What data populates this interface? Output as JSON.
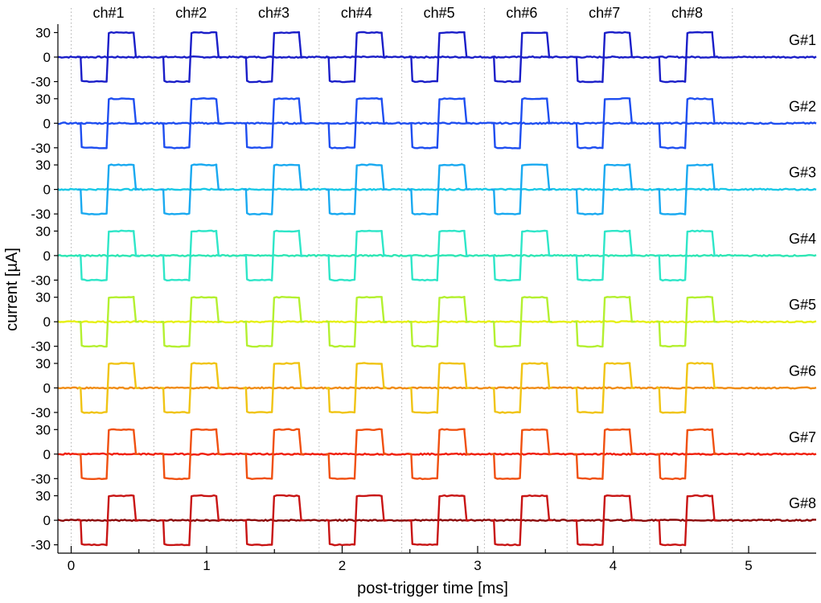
{
  "chart_data": {
    "type": "line",
    "xlabel": "post-trigger time [ms]",
    "ylabel": "current [µA]",
    "xlim": [
      -0.05,
      5.5
    ],
    "ylim": [
      -35,
      35
    ],
    "x_ticks": [
      0,
      1,
      2,
      3,
      4,
      5
    ],
    "y_ticks": [
      30,
      0,
      -30
    ],
    "y_tick_labels": [
      "30",
      "0",
      "-30"
    ],
    "grid": "dotted vertical lines at each channel boundary",
    "channel_labels": [
      "ch#1",
      "ch#2",
      "ch#3",
      "ch#4",
      "ch#5",
      "ch#6",
      "ch#7",
      "ch#8"
    ],
    "channel_period_ms": 0.61,
    "pulse_shape": {
      "negative_phase_ms": [
        0.07,
        0.27
      ],
      "positive_phase_ms": [
        0.27,
        0.47
      ],
      "amplitude_uA": 30
    },
    "groups": [
      {
        "label": "G#1",
        "colors": [
          "#1a1ec8",
          "#1a1ec8",
          "#1a1ec8",
          "#1a1ec8",
          "#1a1ec8",
          "#1a1ec8",
          "#1a1ec8",
          "#1a1ec8"
        ]
      },
      {
        "label": "G#2",
        "colors": [
          "#1e4ef0",
          "#1e4ef0",
          "#1e4ef0",
          "#1e4ef0",
          "#1e4ef0",
          "#1e4ef0",
          "#1e4ef0",
          "#1e4ef0"
        ]
      },
      {
        "label": "G#3",
        "colors": [
          "#19a9f0",
          "#19a9f0",
          "#19a9f0",
          "#19a9f0",
          "#19a9f0",
          "#19a9f0",
          "#19a9f0",
          "#19a9f0"
        ]
      },
      {
        "label": "G#4",
        "colors": [
          "#2ee6c8",
          "#2ee6c8",
          "#2ee6c8",
          "#2ee6c8",
          "#2ee6c8",
          "#2ee6c8",
          "#2ee6c8",
          "#2ee6c8"
        ]
      },
      {
        "label": "G#5",
        "colors": [
          "#b4f030",
          "#b4f030",
          "#b4f030",
          "#b4f030",
          "#b4f030",
          "#b4f030",
          "#b4f030",
          "#b4f030"
        ]
      },
      {
        "label": "G#6",
        "colors": [
          "#f0c414",
          "#f0c414",
          "#f0c414",
          "#f0c414",
          "#f0c414",
          "#f0c414",
          "#f0c414",
          "#f0c414"
        ]
      },
      {
        "label": "G#7",
        "colors": [
          "#f05010",
          "#f05010",
          "#f05010",
          "#f05010",
          "#f05010",
          "#f05010",
          "#f05010",
          "#f05010"
        ]
      },
      {
        "label": "G#8",
        "colors": [
          "#c81414",
          "#c81414",
          "#c81414",
          "#c81414",
          "#c81414",
          "#c81414",
          "#c81414",
          "#c81414"
        ]
      }
    ],
    "baseline_colors": [
      "#1a1ec8",
      "#1e4ef0",
      "#19c8e6",
      "#2ee6b4",
      "#e6f014",
      "#f08c14",
      "#f01e0a",
      "#8c0a0a"
    ]
  }
}
